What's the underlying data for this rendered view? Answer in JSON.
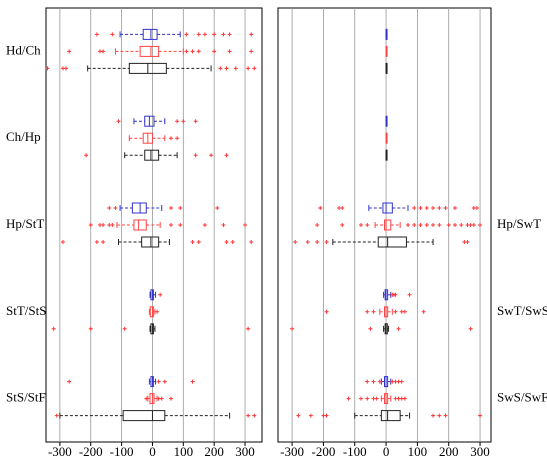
{
  "chart_data": [
    {
      "type": "box",
      "label_side": "left",
      "xlim": [
        -345,
        355
      ],
      "xticks": [
        -300,
        -200,
        -100,
        0,
        100,
        200,
        300
      ],
      "grid": true,
      "outlier_color": "#ff3333",
      "categories": [
        "Hd/Ch",
        "Ch/Hp",
        "Hp/StT",
        "StT/StS",
        "StS/StF"
      ],
      "series": [
        {
          "color": "#3333cc",
          "boxes": [
            {
              "min": -105,
              "q1": -30,
              "median": -5,
              "q3": 15,
              "max": 90,
              "outliers": [
                -180,
                -130,
                110,
                150,
                170,
                200,
                230,
                250,
                320
              ]
            },
            {
              "min": -60,
              "q1": -25,
              "median": -10,
              "q3": 5,
              "max": 40,
              "outliers": [
                -110,
                80,
                100,
                140
              ]
            },
            {
              "min": -105,
              "q1": -65,
              "median": -40,
              "q3": -20,
              "max": 30,
              "outliers": [
                -140,
                -120,
                60,
                90,
                210
              ]
            },
            {
              "min": -8,
              "q1": -5,
              "median": 0,
              "q3": 3,
              "max": 10,
              "outliers": [
                25
              ]
            },
            {
              "min": -10,
              "q1": -5,
              "median": 0,
              "q3": 3,
              "max": 10,
              "outliers": [
                -270,
                20,
                40,
                130
              ]
            }
          ]
        },
        {
          "color": "#ff4444",
          "boxes": [
            {
              "min": -120,
              "q1": -40,
              "median": -5,
              "q3": 20,
              "max": 100,
              "outliers": [
                -270,
                -170,
                -160,
                110,
                130,
                150,
                200,
                250,
                320
              ]
            },
            {
              "min": -75,
              "q1": -30,
              "median": -15,
              "q3": 0,
              "max": 40,
              "outliers": [
                60,
                80
              ]
            },
            {
              "min": -115,
              "q1": -60,
              "median": -45,
              "q3": -20,
              "max": 25,
              "outliers": [
                -200,
                -170,
                -160,
                -140,
                -130,
                60,
                90,
                170,
                230,
                300
              ]
            },
            {
              "min": -10,
              "q1": -7,
              "median": 0,
              "q3": 3,
              "max": 8,
              "outliers": [
                15
              ]
            },
            {
              "min": -15,
              "q1": -8,
              "median": 0,
              "q3": 5,
              "max": 15,
              "outliers": [
                -20,
                20,
                30,
                60
              ]
            }
          ]
        },
        {
          "color": "#222222",
          "boxes": [
            {
              "min": -210,
              "q1": -75,
              "median": -15,
              "q3": 45,
              "max": 190,
              "outliers": [
                -340,
                -290,
                -280,
                220,
                240,
                270,
                310,
                330
              ]
            },
            {
              "min": -90,
              "q1": -25,
              "median": -5,
              "q3": 20,
              "max": 80,
              "outliers": [
                -215,
                140,
                190,
                240
              ]
            },
            {
              "min": -110,
              "q1": -35,
              "median": -5,
              "q3": 20,
              "max": 55,
              "outliers": [
                -290,
                -180,
                -160,
                130,
                150,
                240,
                260,
                320
              ]
            },
            {
              "min": -8,
              "q1": -5,
              "median": 0,
              "q3": 3,
              "max": 8,
              "outliers": [
                -320,
                -200,
                -90,
                310
              ]
            },
            {
              "min": -300,
              "q1": -95,
              "median": 0,
              "q3": 40,
              "max": 250,
              "outliers": [
                -310,
                310,
                330
              ]
            }
          ]
        }
      ]
    },
    {
      "type": "box",
      "label_side": "right",
      "xlim": [
        -345,
        335
      ],
      "xticks": [
        -300,
        -200,
        -100,
        0,
        100,
        200,
        300
      ],
      "grid": true,
      "outlier_color": "#ff3333",
      "categories": [
        null,
        null,
        "Hp/SwT",
        "SwT/SwS",
        "SwS/SwF"
      ],
      "series": [
        {
          "color": "#3333cc",
          "boxes": [
            {
              "min": 0,
              "q1": 0,
              "median": 0,
              "q3": 0,
              "max": 0,
              "outliers": []
            },
            {
              "min": 0,
              "q1": 0,
              "median": 0,
              "q3": 0,
              "max": 0,
              "outliers": []
            },
            {
              "min": -55,
              "q1": -10,
              "median": 0,
              "q3": 20,
              "max": 70,
              "outliers": [
                -210,
                -150,
                -140,
                90,
                110,
                130,
                150,
                170,
                190,
                220,
                280,
                290
              ]
            },
            {
              "min": -8,
              "q1": -3,
              "median": 0,
              "q3": 5,
              "max": 15,
              "outliers": [
                20,
                25,
                30,
                75
              ]
            },
            {
              "min": -15,
              "q1": -5,
              "median": 0,
              "q3": 5,
              "max": 15,
              "outliers": [
                -60,
                -40,
                -20,
                20,
                30,
                40,
                50
              ]
            }
          ]
        },
        {
          "color": "#ff4444",
          "boxes": [
            {
              "min": 0,
              "q1": 0,
              "median": 0,
              "q3": 0,
              "max": 0,
              "outliers": []
            },
            {
              "min": 0,
              "q1": 0,
              "median": 0,
              "q3": 0,
              "max": 0,
              "outliers": []
            },
            {
              "min": -35,
              "q1": -5,
              "median": 0,
              "q3": 15,
              "max": 45,
              "outliers": [
                -220,
                -140,
                -80,
                -60,
                70,
                90,
                110,
                130,
                150,
                170,
                200,
                220,
                240,
                260,
                270,
                280,
                300
              ]
            },
            {
              "min": -20,
              "q1": -5,
              "median": 0,
              "q3": 5,
              "max": 20,
              "outliers": [
                -190,
                -60,
                -40,
                30,
                50,
                60,
                120
              ]
            },
            {
              "min": -15,
              "q1": -5,
              "median": 0,
              "q3": 5,
              "max": 15,
              "outliers": [
                -120,
                -80,
                -60,
                -40,
                -30,
                30,
                40,
                50,
                60
              ]
            }
          ]
        },
        {
          "color": "#222222",
          "boxes": [
            {
              "min": 0,
              "q1": 0,
              "median": 0,
              "q3": 0,
              "max": 0,
              "outliers": []
            },
            {
              "min": 0,
              "q1": 0,
              "median": 0,
              "q3": 0,
              "max": 0,
              "outliers": []
            },
            {
              "min": -170,
              "q1": -25,
              "median": 5,
              "q3": 65,
              "max": 150,
              "outliers": [
                -290,
                -250,
                -220,
                -190,
                250,
                260
              ]
            },
            {
              "min": -8,
              "q1": -3,
              "median": 0,
              "q3": 4,
              "max": 8,
              "outliers": [
                -300,
                -50,
                40,
                270
              ]
            },
            {
              "min": -100,
              "q1": -15,
              "median": 5,
              "q3": 45,
              "max": 75,
              "outliers": [
                -280,
                -240,
                -200,
                -190,
                150,
                170,
                190,
                300
              ]
            }
          ]
        }
      ]
    }
  ]
}
